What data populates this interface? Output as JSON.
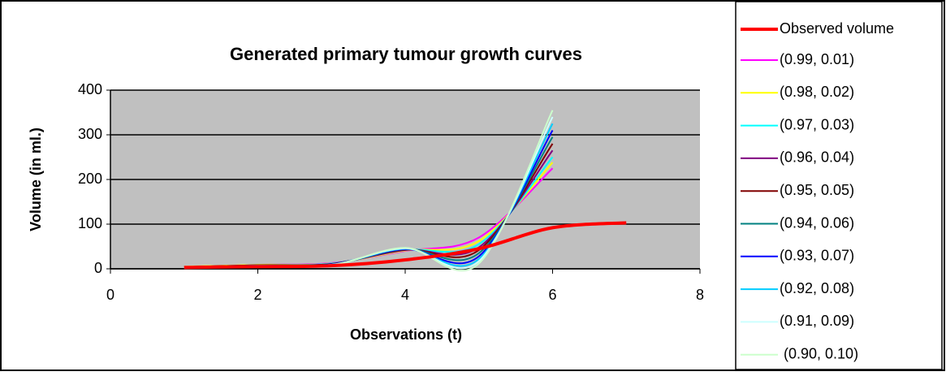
{
  "chart_data": {
    "type": "line",
    "title": "Generated primary tumour growth curves",
    "xlabel": "Observations (t)",
    "ylabel": "Volume (in ml.)",
    "xlim": [
      0,
      8
    ],
    "xticks": [
      0,
      2,
      4,
      6,
      8
    ],
    "ylim": [
      0,
      400
    ],
    "yticks": [
      0,
      100,
      200,
      300,
      400
    ],
    "grid": true,
    "smooth": true,
    "legend": "right",
    "series": [
      {
        "name": "Observed volume",
        "color": "#ff0000",
        "x": [
          1,
          2,
          3,
          4,
          5,
          6,
          7
        ],
        "values": [
          3,
          5,
          7,
          20,
          45,
          92,
          103
        ]
      },
      {
        "name": "(0.99, 0.01)",
        "color": "#ff00ff",
        "x": [
          1,
          2,
          3,
          4,
          5,
          6
        ],
        "values": [
          5,
          9,
          13,
          40,
          70,
          225
        ]
      },
      {
        "name": "(0.98, 0.02)",
        "color": "#ffff00",
        "x": [
          1,
          2,
          3,
          4,
          5,
          6
        ],
        "values": [
          5,
          9,
          12,
          41,
          62,
          238
        ]
      },
      {
        "name": "(0.97, 0.03)",
        "color": "#00ffff",
        "x": [
          1,
          2,
          3,
          4,
          5,
          6
        ],
        "values": [
          4,
          8,
          12,
          42,
          55,
          250
        ]
      },
      {
        "name": "(0.96, 0.04)",
        "color": "#800080",
        "x": [
          1,
          2,
          3,
          4,
          5,
          6
        ],
        "values": [
          4,
          8,
          11,
          42,
          48,
          265
        ]
      },
      {
        "name": "(0.95, 0.05)",
        "color": "#800000",
        "x": [
          1,
          2,
          3,
          4,
          5,
          6
        ],
        "values": [
          4,
          8,
          11,
          43,
          42,
          280
        ]
      },
      {
        "name": "(0.94, 0.06)",
        "color": "#008080",
        "x": [
          1,
          2,
          3,
          4,
          5,
          6
        ],
        "values": [
          4,
          7,
          10,
          44,
          35,
          295
        ]
      },
      {
        "name": "(0.93, 0.07)",
        "color": "#0000ff",
        "x": [
          1,
          2,
          3,
          4,
          5,
          6
        ],
        "values": [
          3,
          7,
          10,
          44,
          28,
          310
        ]
      },
      {
        "name": "(0.92, 0.08)",
        "color": "#00ccff",
        "x": [
          1,
          2,
          3,
          4,
          5,
          6
        ],
        "values": [
          3,
          7,
          9,
          45,
          22,
          325
        ]
      },
      {
        "name": "(0.91, 0.09)",
        "color": "#ccffff",
        "x": [
          1,
          2,
          3,
          4,
          5,
          6
        ],
        "values": [
          3,
          6,
          9,
          46,
          17,
          340
        ]
      },
      {
        "name": " (0.90, 0.10)",
        "color": "#ccffcc",
        "x": [
          1,
          2,
          3,
          4,
          5,
          6
        ],
        "values": [
          3,
          6,
          8,
          47,
          12,
          355
        ]
      }
    ]
  }
}
